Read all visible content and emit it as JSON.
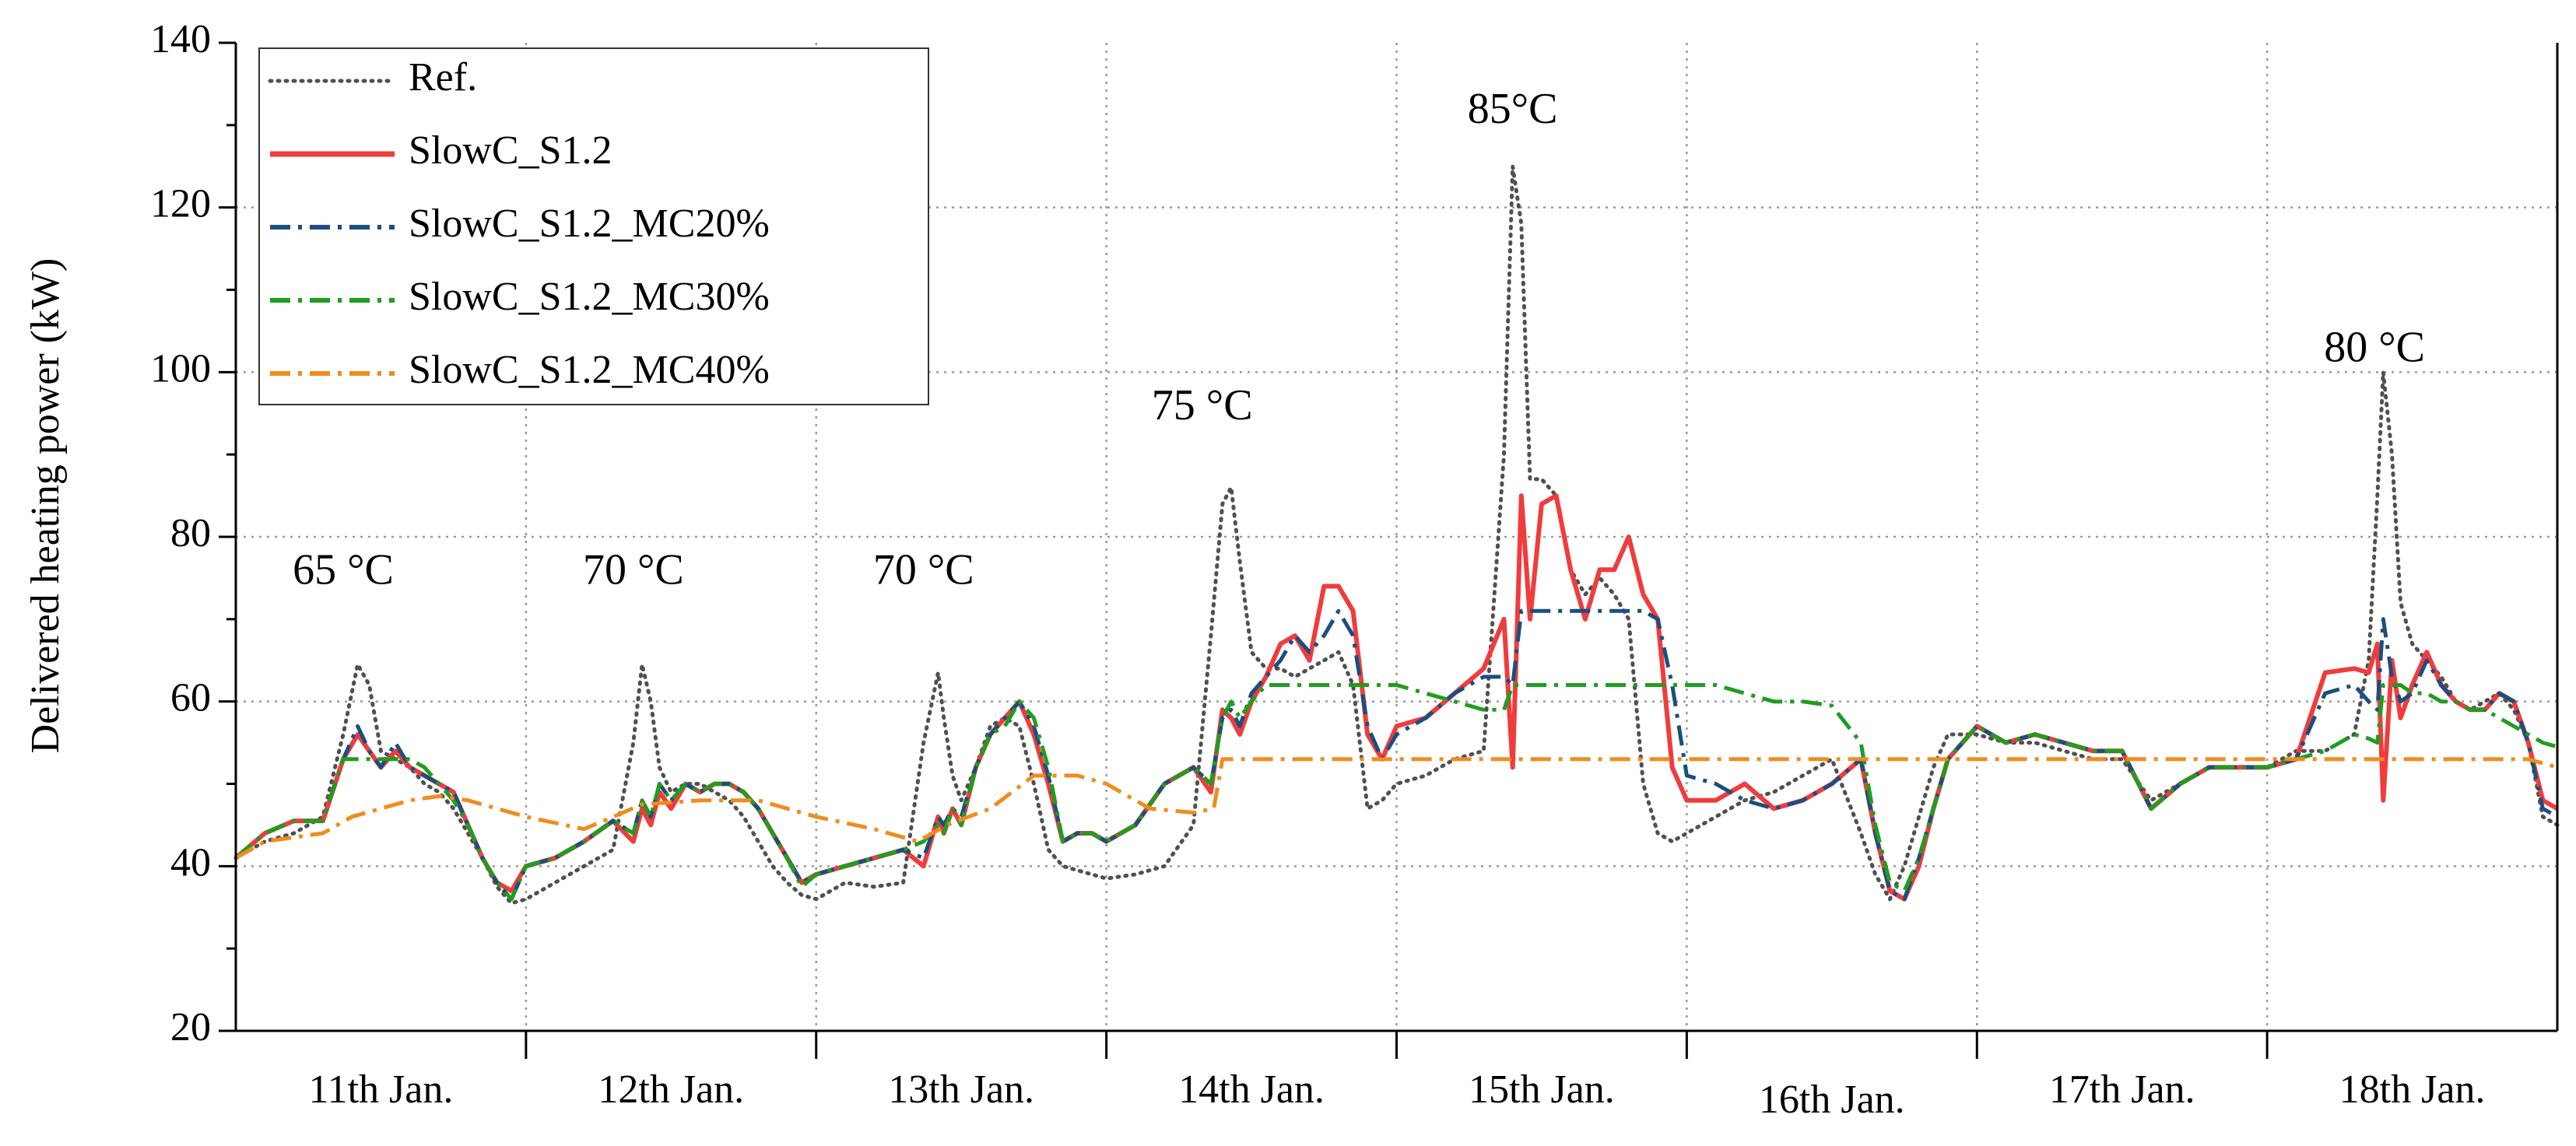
{
  "chart_data": {
    "type": "line",
    "title": "",
    "xlabel": "",
    "ylabel": "Delivered heating power (kW)",
    "xlim": [
      0,
      8
    ],
    "ylim": [
      20,
      140
    ],
    "yticks": [
      20,
      40,
      60,
      80,
      100,
      120,
      140
    ],
    "x_boundaries": [
      1,
      2,
      3,
      4,
      5,
      6,
      7
    ],
    "categories": [
      "11th Jan.",
      "12th Jan.",
      "13th Jan.",
      "14th Jan.",
      "15th Jan.",
      "16th Jan.",
      "17th Jan.",
      "18th Jan."
    ],
    "grid": true,
    "legend_position": "top-left",
    "annotations": [
      {
        "text": "65 °C",
        "x": 0.37,
        "y": 75.5
      },
      {
        "text": "70 °C",
        "x": 1.37,
        "y": 75.5
      },
      {
        "text": "70 °C",
        "x": 2.37,
        "y": 75.5
      },
      {
        "text": "75 °C",
        "x": 3.33,
        "y": 95.5
      },
      {
        "text": "85°C",
        "x": 4.4,
        "y": 131.5
      },
      {
        "text": "80 °C",
        "x": 7.37,
        "y": 102.5
      }
    ],
    "series": [
      {
        "name": "Ref.",
        "color": "#505050",
        "style": "dotted",
        "x": [
          0,
          0.1,
          0.2,
          0.3,
          0.37,
          0.42,
          0.46,
          0.5,
          0.55,
          0.6,
          0.65,
          0.7,
          0.75,
          0.8,
          0.85,
          0.9,
          0.95,
          1.0,
          1.1,
          1.2,
          1.3,
          1.37,
          1.4,
          1.43,
          1.46,
          1.5,
          1.55,
          1.6,
          1.65,
          1.7,
          1.75,
          1.8,
          1.85,
          1.9,
          1.95,
          2.0,
          2.1,
          2.2,
          2.3,
          2.37,
          2.42,
          2.44,
          2.47,
          2.5,
          2.55,
          2.6,
          2.65,
          2.7,
          2.75,
          2.8,
          2.85,
          2.9,
          2.95,
          3.0,
          3.1,
          3.2,
          3.3,
          3.36,
          3.4,
          3.43,
          3.46,
          3.5,
          3.55,
          3.6,
          3.65,
          3.7,
          3.75,
          3.8,
          3.85,
          3.9,
          3.95,
          4.0,
          4.1,
          4.2,
          4.3,
          4.37,
          4.4,
          4.43,
          4.46,
          4.5,
          4.55,
          4.6,
          4.65,
          4.7,
          4.75,
          4.8,
          4.85,
          4.9,
          4.95,
          5.0,
          5.1,
          5.2,
          5.3,
          5.4,
          5.5,
          5.6,
          5.65,
          5.7,
          5.75,
          5.8,
          5.85,
          5.9,
          6.0,
          6.1,
          6.2,
          6.3,
          6.4,
          6.5,
          6.6,
          6.7,
          6.8,
          6.9,
          7.0,
          7.1,
          7.2,
          7.3,
          7.35,
          7.38,
          7.4,
          7.43,
          7.46,
          7.5,
          7.55,
          7.6,
          7.65,
          7.7,
          7.75,
          7.8,
          7.85,
          7.9,
          7.95,
          8.0
        ],
        "values": [
          41,
          43,
          44,
          46,
          56,
          64.5,
          62,
          54,
          53,
          52,
          50,
          49,
          47,
          44,
          41,
          37.5,
          35.5,
          36,
          38,
          40,
          42,
          55,
          64.5,
          60,
          52,
          49,
          50,
          50,
          49,
          48,
          46,
          43,
          40,
          38,
          36.5,
          36,
          38,
          37.5,
          38,
          55,
          63.5,
          58,
          51,
          48,
          52,
          57,
          58,
          57,
          50,
          42,
          40,
          39.5,
          39,
          38.5,
          39,
          40,
          45,
          68,
          84,
          86,
          77,
          66,
          64,
          64,
          63,
          64,
          65,
          66,
          62,
          47,
          48,
          50,
          51,
          53,
          54,
          90,
          125,
          118,
          87,
          87,
          85,
          76,
          73,
          75,
          73,
          70,
          50,
          44,
          43,
          44,
          46,
          48,
          49,
          51,
          53,
          44,
          39,
          36,
          40,
          46,
          52,
          56,
          56,
          55,
          55,
          54,
          53,
          53,
          48,
          50,
          52,
          52,
          52,
          54,
          54,
          56,
          65,
          85,
          100,
          90,
          72,
          67,
          65,
          63,
          60,
          59,
          60,
          61,
          59,
          55,
          46,
          45
        ]
      },
      {
        "name": "SlowC_S1.2",
        "color": "#f03c3c",
        "style": "solid",
        "x": [
          0,
          0.1,
          0.2,
          0.3,
          0.37,
          0.42,
          0.46,
          0.5,
          0.55,
          0.6,
          0.65,
          0.7,
          0.75,
          0.8,
          0.85,
          0.9,
          0.95,
          1.0,
          1.1,
          1.2,
          1.3,
          1.37,
          1.4,
          1.43,
          1.46,
          1.5,
          1.55,
          1.6,
          1.65,
          1.7,
          1.75,
          1.8,
          1.85,
          1.9,
          1.95,
          2.0,
          2.1,
          2.2,
          2.3,
          2.37,
          2.42,
          2.44,
          2.47,
          2.5,
          2.55,
          2.6,
          2.65,
          2.7,
          2.75,
          2.8,
          2.85,
          2.9,
          2.95,
          3.0,
          3.1,
          3.2,
          3.3,
          3.36,
          3.4,
          3.43,
          3.46,
          3.5,
          3.55,
          3.6,
          3.65,
          3.7,
          3.75,
          3.8,
          3.85,
          3.9,
          3.95,
          4.0,
          4.1,
          4.2,
          4.3,
          4.37,
          4.4,
          4.43,
          4.46,
          4.5,
          4.55,
          4.6,
          4.65,
          4.7,
          4.75,
          4.8,
          4.85,
          4.9,
          4.95,
          5.0,
          5.1,
          5.2,
          5.3,
          5.4,
          5.5,
          5.6,
          5.65,
          5.7,
          5.75,
          5.8,
          5.85,
          5.9,
          6.0,
          6.1,
          6.2,
          6.3,
          6.4,
          6.5,
          6.6,
          6.7,
          6.8,
          6.9,
          7.0,
          7.1,
          7.2,
          7.3,
          7.35,
          7.38,
          7.4,
          7.43,
          7.46,
          7.5,
          7.55,
          7.6,
          7.65,
          7.7,
          7.75,
          7.8,
          7.85,
          7.9,
          7.95,
          8.0
        ],
        "values": [
          41,
          44,
          45.5,
          45.5,
          53,
          56,
          54,
          52,
          54,
          52,
          51,
          50,
          49,
          45,
          41,
          38,
          37,
          40,
          41,
          43,
          45.5,
          43,
          47,
          45,
          49,
          47,
          50,
          49,
          50,
          50,
          49,
          47,
          44,
          41,
          38,
          39,
          40,
          41,
          42,
          40,
          46,
          44,
          47,
          45,
          52,
          56,
          58,
          60,
          56,
          50,
          43,
          44,
          44,
          43,
          45,
          50,
          52,
          49,
          59,
          58,
          56,
          60,
          63,
          67,
          68,
          65,
          74,
          74,
          71,
          56,
          53,
          57,
          58,
          61,
          64,
          70,
          52,
          85,
          70,
          84,
          85,
          76,
          70,
          76,
          76,
          80,
          73,
          70,
          52,
          48,
          48,
          50,
          47,
          48,
          50,
          53,
          44,
          37,
          36,
          40,
          47,
          53,
          57,
          55,
          56,
          55,
          54,
          54,
          47,
          50,
          52,
          52,
          52,
          53,
          63.5,
          64,
          63.5,
          67,
          48,
          65,
          58,
          62,
          66,
          62,
          60,
          59,
          59,
          61,
          60,
          55,
          48,
          47
        ]
      },
      {
        "name": "SlowC_S1.2_MC20%",
        "color": "#1a4f80",
        "style": "dashdot",
        "x": [
          0,
          0.1,
          0.2,
          0.3,
          0.37,
          0.42,
          0.46,
          0.5,
          0.55,
          0.6,
          0.65,
          0.7,
          0.75,
          0.8,
          0.85,
          0.9,
          0.95,
          1.0,
          1.1,
          1.2,
          1.3,
          1.37,
          1.4,
          1.43,
          1.46,
          1.5,
          1.55,
          1.6,
          1.65,
          1.7,
          1.75,
          1.8,
          1.85,
          1.9,
          1.95,
          2.0,
          2.1,
          2.2,
          2.3,
          2.37,
          2.42,
          2.44,
          2.47,
          2.5,
          2.55,
          2.6,
          2.65,
          2.7,
          2.75,
          2.8,
          2.85,
          2.9,
          2.95,
          3.0,
          3.1,
          3.2,
          3.3,
          3.36,
          3.4,
          3.43,
          3.46,
          3.5,
          3.55,
          3.6,
          3.65,
          3.7,
          3.75,
          3.8,
          3.85,
          3.9,
          3.95,
          4.0,
          4.1,
          4.2,
          4.3,
          4.37,
          4.4,
          4.43,
          4.46,
          4.5,
          4.55,
          4.6,
          4.65,
          4.7,
          4.75,
          4.8,
          4.85,
          4.9,
          4.95,
          5.0,
          5.1,
          5.2,
          5.3,
          5.4,
          5.5,
          5.6,
          5.65,
          5.7,
          5.75,
          5.8,
          5.85,
          5.9,
          6.0,
          6.1,
          6.2,
          6.3,
          6.4,
          6.5,
          6.6,
          6.7,
          6.8,
          6.9,
          7.0,
          7.1,
          7.2,
          7.3,
          7.35,
          7.38,
          7.4,
          7.43,
          7.46,
          7.5,
          7.55,
          7.6,
          7.65,
          7.7,
          7.75,
          7.8,
          7.85,
          7.9,
          7.95,
          8.0
        ],
        "values": [
          41,
          44,
          45.5,
          45.5,
          53,
          57,
          54,
          52,
          55,
          52,
          51,
          50,
          49,
          45,
          41,
          38,
          36,
          40,
          41,
          43,
          45.5,
          44,
          48,
          46,
          50,
          48,
          50,
          49,
          50,
          50,
          49,
          47,
          44,
          41,
          38,
          39,
          40,
          41,
          42,
          41,
          46,
          45,
          47,
          46,
          52,
          56,
          58,
          60,
          57,
          51,
          43,
          44,
          44,
          43,
          45,
          50,
          52,
          50,
          58,
          59,
          57,
          61,
          63,
          65,
          68,
          66,
          68,
          71,
          68,
          57,
          53,
          56,
          58,
          61,
          63,
          63,
          62,
          71,
          71,
          71,
          71,
          71,
          71,
          71,
          71,
          71,
          71,
          70,
          62,
          51,
          50,
          48,
          47,
          48,
          50,
          53,
          44,
          37,
          36,
          41,
          47,
          53,
          57,
          55,
          56,
          55,
          54,
          54,
          47,
          50,
          52,
          52,
          52,
          53,
          61,
          62,
          60,
          59,
          70,
          63,
          60,
          61,
          65,
          62,
          60,
          59,
          59,
          61,
          60,
          55,
          47,
          46
        ]
      },
      {
        "name": "SlowC_S1.2_MC30%",
        "color": "#1e9e1e",
        "style": "dashdot",
        "x": [
          0,
          0.1,
          0.2,
          0.3,
          0.37,
          0.42,
          0.46,
          0.5,
          0.55,
          0.6,
          0.65,
          0.7,
          0.75,
          0.8,
          0.85,
          0.9,
          0.95,
          1.0,
          1.1,
          1.2,
          1.3,
          1.37,
          1.4,
          1.43,
          1.46,
          1.5,
          1.55,
          1.6,
          1.65,
          1.7,
          1.75,
          1.8,
          1.85,
          1.9,
          1.95,
          2.0,
          2.1,
          2.2,
          2.3,
          2.37,
          2.42,
          2.44,
          2.47,
          2.5,
          2.55,
          2.6,
          2.65,
          2.7,
          2.75,
          2.8,
          2.85,
          2.9,
          2.95,
          3.0,
          3.1,
          3.2,
          3.3,
          3.36,
          3.4,
          3.43,
          3.46,
          3.5,
          3.55,
          3.6,
          3.65,
          3.7,
          3.75,
          3.8,
          3.85,
          3.9,
          3.95,
          4.0,
          4.1,
          4.2,
          4.3,
          4.37,
          4.4,
          4.43,
          4.46,
          4.5,
          4.55,
          4.6,
          4.65,
          4.7,
          4.75,
          4.8,
          4.85,
          4.9,
          4.95,
          5.0,
          5.1,
          5.2,
          5.3,
          5.4,
          5.5,
          5.6,
          5.65,
          5.7,
          5.75,
          5.8,
          5.85,
          5.9,
          6.0,
          6.1,
          6.2,
          6.3,
          6.4,
          6.5,
          6.6,
          6.7,
          6.8,
          6.9,
          7.0,
          7.1,
          7.2,
          7.3,
          7.35,
          7.38,
          7.4,
          7.43,
          7.46,
          7.5,
          7.55,
          7.6,
          7.65,
          7.7,
          7.75,
          7.8,
          7.85,
          7.9,
          7.95,
          8.0
        ],
        "values": [
          41,
          44,
          45.5,
          45.5,
          53,
          53,
          53,
          53,
          53,
          53,
          52,
          50,
          48,
          45,
          41,
          38,
          36,
          40,
          41,
          43,
          45.5,
          44,
          48,
          46,
          50,
          48,
          50,
          49,
          50,
          50,
          49,
          47,
          44,
          41,
          37.5,
          39,
          40,
          41,
          42,
          43,
          45,
          44,
          47,
          45,
          52,
          56,
          57,
          60,
          58,
          52,
          43,
          44,
          44,
          43,
          45,
          50,
          52,
          50,
          58,
          60,
          58,
          60,
          62,
          62,
          62,
          62,
          62,
          62,
          62,
          62,
          62,
          62,
          61,
          60,
          59,
          59,
          62,
          62,
          62,
          62,
          62,
          62,
          62,
          62,
          62,
          62,
          62,
          62,
          62,
          62,
          62,
          61,
          60,
          60,
          59.5,
          55,
          45,
          38,
          37,
          41,
          47,
          53,
          57,
          55,
          56,
          55,
          54,
          54,
          47,
          50,
          52,
          52,
          52,
          53,
          54,
          56,
          55.5,
          55,
          62,
          62,
          62,
          61,
          61,
          60,
          60,
          59,
          59,
          58,
          57,
          56,
          55,
          54.5
        ]
      },
      {
        "name": "SlowC_S1.2_MC40%",
        "color": "#f08c1e",
        "style": "dashdot",
        "x": [
          0,
          0.1,
          0.2,
          0.3,
          0.4,
          0.5,
          0.6,
          0.7,
          0.8,
          0.9,
          1.0,
          1.2,
          1.4,
          1.6,
          1.8,
          2.0,
          2.2,
          2.35,
          2.45,
          2.6,
          2.75,
          2.9,
          3.0,
          3.15,
          3.3,
          3.37,
          3.4,
          3.5,
          4.0,
          4.5,
          5.0,
          5.5,
          6.0,
          6.5,
          7.0,
          7.5,
          7.9,
          8.0
        ],
        "values": [
          41,
          43,
          43.5,
          44,
          46,
          47,
          48,
          48.5,
          48,
          47,
          46,
          44.5,
          47.5,
          48,
          48,
          46,
          44.5,
          43,
          45,
          47,
          51,
          51,
          50,
          47,
          46.5,
          47,
          53,
          53,
          53,
          53,
          53,
          53,
          53,
          53,
          53,
          53,
          53,
          52
        ]
      }
    ]
  }
}
